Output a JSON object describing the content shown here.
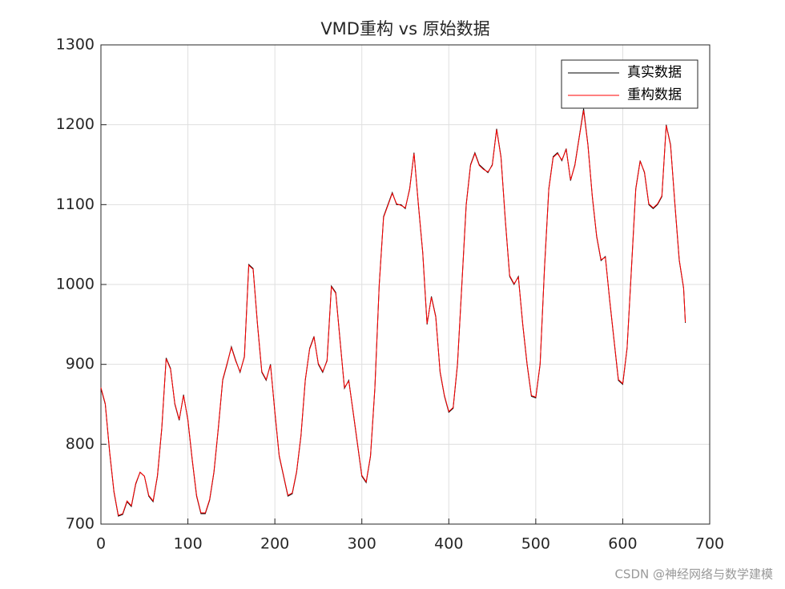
{
  "chart_data": {
    "type": "line",
    "title": "VMD重构 vs 原始数据",
    "x": [
      0,
      5,
      10,
      15,
      20,
      25,
      30,
      35,
      40,
      45,
      50,
      55,
      60,
      65,
      70,
      75,
      80,
      85,
      90,
      95,
      100,
      105,
      110,
      115,
      120,
      125,
      130,
      135,
      140,
      145,
      150,
      155,
      160,
      165,
      170,
      175,
      180,
      185,
      190,
      195,
      200,
      205,
      210,
      215,
      220,
      225,
      230,
      235,
      240,
      245,
      250,
      255,
      260,
      265,
      270,
      275,
      280,
      285,
      290,
      295,
      300,
      305,
      310,
      315,
      320,
      325,
      330,
      335,
      340,
      345,
      350,
      355,
      360,
      365,
      370,
      375,
      380,
      385,
      390,
      395,
      400,
      405,
      410,
      415,
      420,
      425,
      430,
      435,
      440,
      445,
      450,
      455,
      460,
      465,
      470,
      475,
      480,
      485,
      490,
      495,
      500,
      505,
      510,
      515,
      520,
      525,
      530,
      535,
      540,
      545,
      550,
      555,
      560,
      565,
      570,
      575,
      580,
      585,
      590,
      595,
      600,
      605,
      610,
      615,
      620,
      625,
      630,
      635,
      640,
      645,
      650,
      655,
      660,
      665,
      670,
      672
    ],
    "series": [
      {
        "name": "真实数据",
        "color": "#000000",
        "values": [
          870,
          850,
          790,
          740,
          710,
          712,
          728,
          722,
          750,
          765,
          760,
          735,
          728,
          760,
          820,
          908,
          895,
          850,
          830,
          862,
          830,
          780,
          735,
          713,
          713,
          730,
          765,
          820,
          880,
          900,
          922,
          905,
          890,
          910,
          1025,
          1020,
          950,
          890,
          880,
          900,
          840,
          785,
          760,
          735,
          738,
          765,
          810,
          880,
          920,
          935,
          900,
          890,
          905,
          998,
          990,
          930,
          870,
          880,
          840,
          800,
          760,
          752,
          785,
          870,
          1000,
          1085,
          1100,
          1115,
          1100,
          1100,
          1095,
          1120,
          1165,
          1100,
          1040,
          950,
          985,
          960,
          890,
          860,
          840,
          845,
          900,
          1000,
          1100,
          1150,
          1165,
          1150,
          1145,
          1140,
          1150,
          1195,
          1160,
          1080,
          1010,
          1000,
          1010,
          950,
          900,
          860,
          858,
          900,
          1020,
          1120,
          1160,
          1165,
          1155,
          1170,
          1130,
          1150,
          1185,
          1220,
          1175,
          1110,
          1060,
          1030,
          1035,
          980,
          930,
          880,
          875,
          920,
          1020,
          1120,
          1155,
          1140,
          1100,
          1095,
          1100,
          1110,
          1200,
          1175,
          1100,
          1030,
          995,
          952
        ]
      },
      {
        "name": "重构数据",
        "color": "#ff0000",
        "values": [
          871,
          851,
          791,
          741,
          711,
          713,
          729,
          723,
          751,
          765,
          760,
          736,
          729,
          761,
          821,
          907,
          894,
          851,
          831,
          861,
          831,
          781,
          736,
          714,
          714,
          731,
          766,
          821,
          881,
          901,
          921,
          904,
          891,
          909,
          1024,
          1019,
          951,
          891,
          881,
          899,
          841,
          786,
          761,
          736,
          739,
          766,
          811,
          881,
          919,
          934,
          901,
          891,
          904,
          997,
          989,
          929,
          871,
          879,
          841,
          801,
          761,
          753,
          786,
          871,
          999,
          1084,
          1099,
          1114,
          1101,
          1099,
          1096,
          1119,
          1164,
          1101,
          1041,
          951,
          984,
          959,
          891,
          861,
          841,
          846,
          901,
          999,
          1099,
          1149,
          1164,
          1149,
          1144,
          1141,
          1149,
          1194,
          1159,
          1081,
          1011,
          1001,
          1009,
          951,
          901,
          861,
          859,
          901,
          1019,
          1119,
          1159,
          1164,
          1156,
          1169,
          1131,
          1149,
          1184,
          1218,
          1174,
          1111,
          1061,
          1031,
          1034,
          981,
          931,
          881,
          876,
          921,
          1019,
          1119,
          1154,
          1141,
          1101,
          1096,
          1101,
          1111,
          1199,
          1174,
          1101,
          1031,
          996,
          953
        ]
      }
    ],
    "xlim": [
      0,
      700
    ],
    "xticks": [
      0,
      100,
      200,
      300,
      400,
      500,
      600,
      700
    ],
    "ylim": [
      700,
      1300
    ],
    "yticks": [
      700,
      800,
      900,
      1000,
      1100,
      1200,
      1300
    ],
    "grid": true,
    "legend": "northeast",
    "watermark": "CSDN @神经网络与数学建模"
  }
}
